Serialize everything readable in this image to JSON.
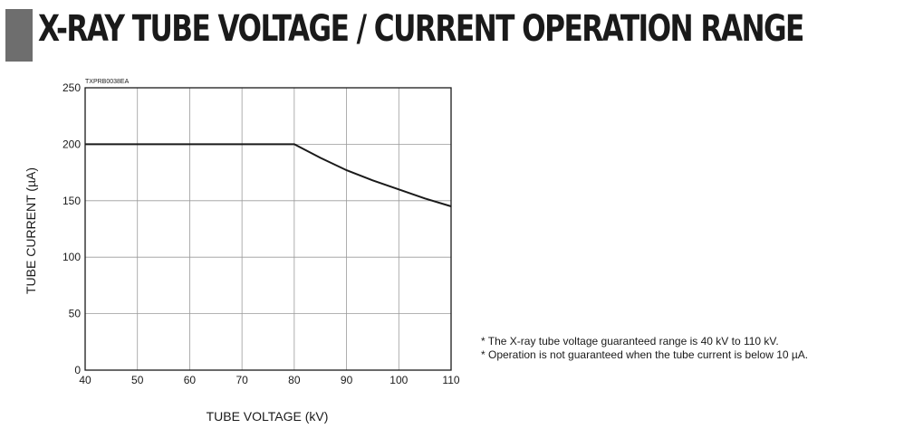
{
  "page": {
    "title": "X-RAY TUBE VOLTAGE / CURRENT OPERATION RANGE",
    "notes": [
      "* The X-ray tube voltage guaranteed range is 40 kV to 110 kV.",
      "* Operation is not guaranteed when the tube current is below 10 µA."
    ]
  },
  "colors": {
    "title_bar": "#6e6e6e",
    "line": "#1a1a1a",
    "grid": "#9a9a9a"
  },
  "chart_data": {
    "type": "line",
    "code": "TXPRB0038EA",
    "title": "",
    "xlabel": "TUBE VOLTAGE (kV)",
    "ylabel": "TUBE CURRENT (µA)",
    "xlim": [
      40,
      110
    ],
    "ylim": [
      0,
      250
    ],
    "xticks": [
      40,
      50,
      60,
      70,
      80,
      90,
      100,
      110
    ],
    "yticks": [
      0,
      50,
      100,
      150,
      200,
      250
    ],
    "grid": true,
    "series": [
      {
        "x": [
          40,
          80,
          85,
          90,
          95,
          100,
          105,
          110
        ],
        "y": [
          200,
          200,
          188,
          177,
          168,
          160,
          152,
          145
        ]
      }
    ]
  }
}
